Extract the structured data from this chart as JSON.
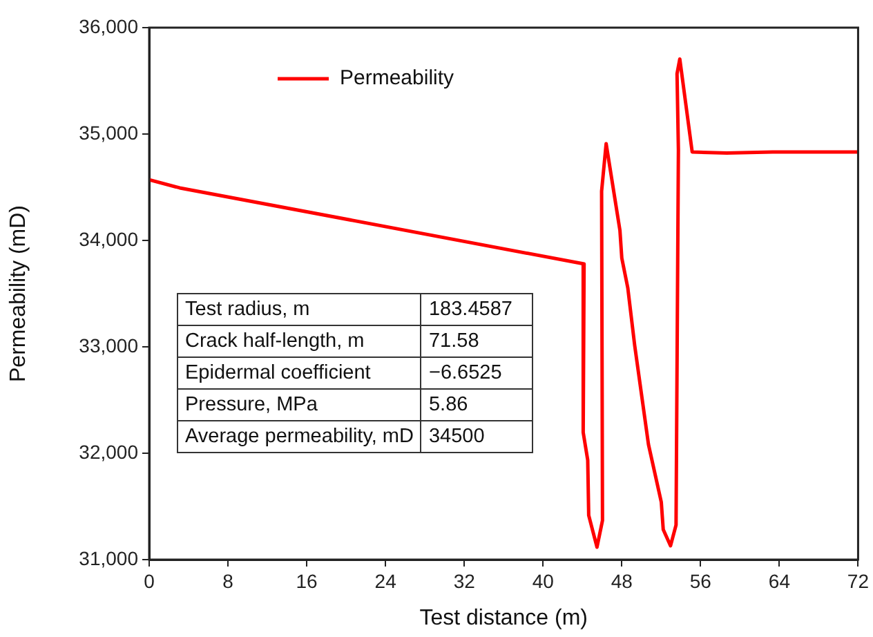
{
  "chart_data": {
    "type": "line",
    "xlabel": "Test distance (m)",
    "ylabel": "Permeability (mD)",
    "series": [
      {
        "name": "Permeability",
        "color": "#ff0000",
        "x": [
          0,
          3.1,
          44.17,
          44.08,
          44.54,
          44.64,
          45.48,
          46.04,
          45.95,
          46.41,
          47.81,
          48.0,
          48.61,
          49.31,
          50.71,
          52.01,
          52.21,
          52.95,
          53.51,
          53.75,
          53.61,
          53.89,
          55.15,
          58.65,
          63.32,
          71.96
        ],
        "values": [
          34570,
          34494,
          33779,
          32195,
          31935,
          31416,
          31117,
          31368,
          34463,
          34909,
          34095,
          33835,
          33554,
          33013,
          32082,
          31541,
          31282,
          31130,
          31325,
          34853,
          35567,
          35705,
          34831,
          34822,
          34831,
          34831
        ]
      }
    ],
    "xlim": [
      0,
      72
    ],
    "xticks": [
      0,
      8,
      16,
      24,
      32,
      40,
      48,
      56,
      64,
      72
    ],
    "ylim": [
      31000,
      36000
    ],
    "yticks": [
      {
        "value": 31000,
        "label": "31,000"
      },
      {
        "value": 32000,
        "label": "32,000"
      },
      {
        "value": 33000,
        "label": "33,000"
      },
      {
        "value": 34000,
        "label": "34,000"
      },
      {
        "value": 35000,
        "label": "35,000"
      },
      {
        "value": 36000,
        "label": "36,000"
      }
    ],
    "grid": false,
    "legend": "top left",
    "marker": "none",
    "line_style": "solid",
    "annotations": [
      "Test radius, m",
      "183.4587",
      "Crack half-length, m",
      "71.58",
      "Epidermal coefficient",
      "−6.6525",
      "Pressure, MPa",
      "5.86",
      "Average permeability, mD",
      "34500"
    ]
  }
}
